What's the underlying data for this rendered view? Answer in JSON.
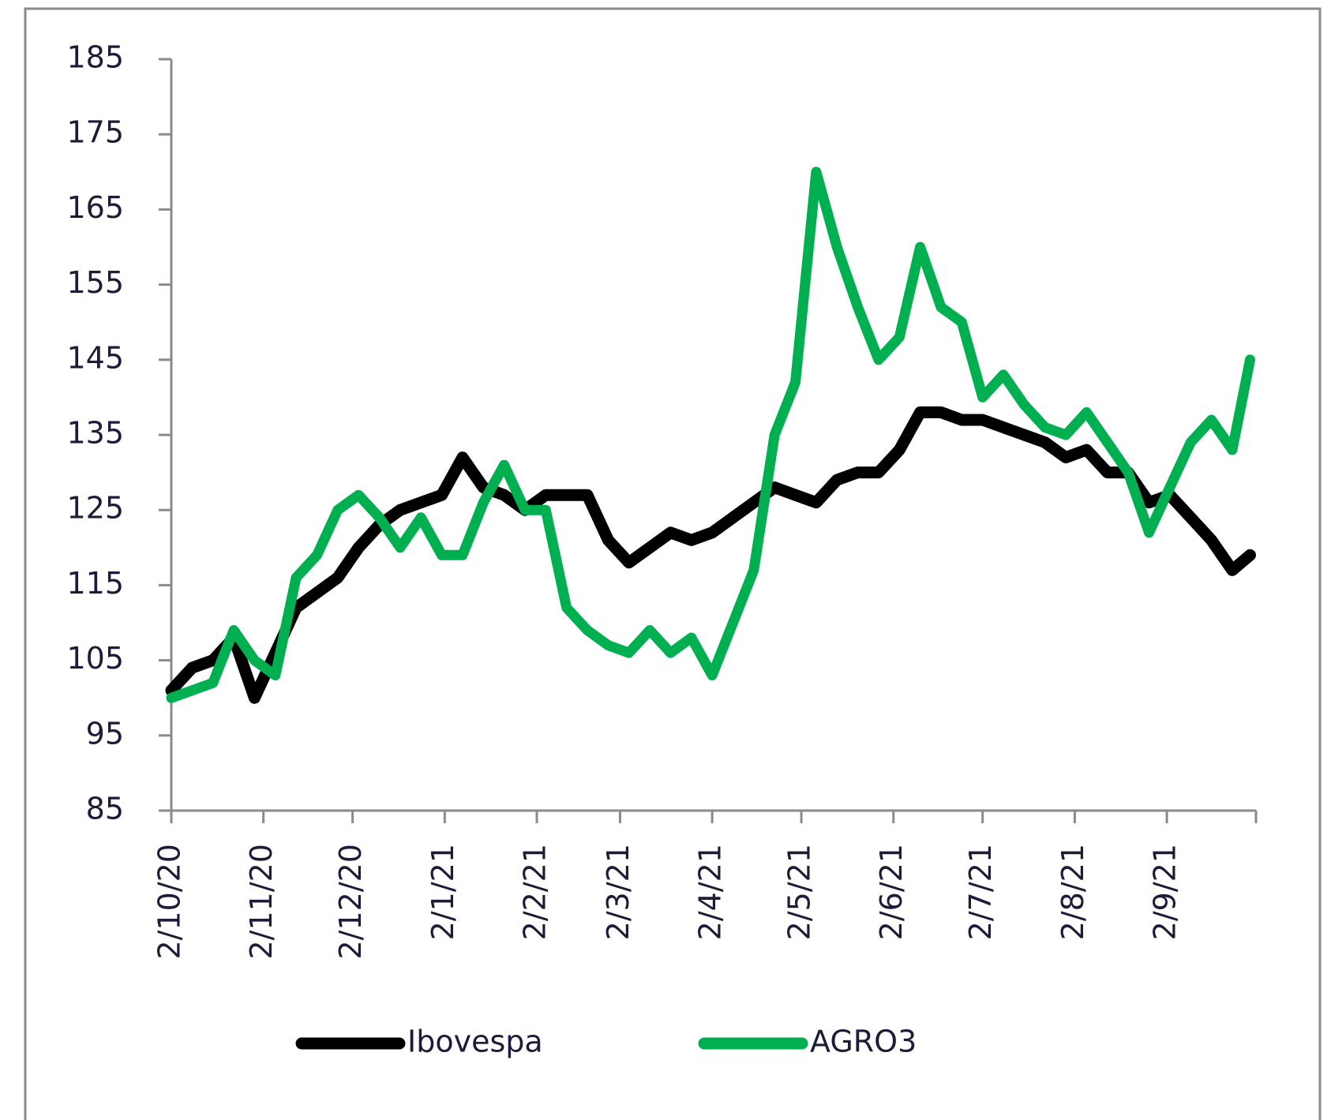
{
  "chart_data": {
    "type": "line",
    "x": [
      "2/10/20",
      "9/10/20",
      "16/10/20",
      "23/10/20",
      "30/10/20",
      "6/11/20",
      "13/11/20",
      "20/11/20",
      "27/11/20",
      "4/12/20",
      "11/12/20",
      "18/12/20",
      "25/12/20",
      "1/1/21",
      "8/1/21",
      "15/1/21",
      "22/1/21",
      "29/1/21",
      "5/2/21",
      "12/2/21",
      "19/2/21",
      "26/2/21",
      "5/3/21",
      "12/3/21",
      "19/3/21",
      "26/3/21",
      "2/4/21",
      "9/4/21",
      "16/4/21",
      "23/4/21",
      "30/4/21",
      "7/5/21",
      "14/5/21",
      "21/5/21",
      "28/5/21",
      "4/6/21",
      "11/6/21",
      "18/6/21",
      "25/6/21",
      "2/7/21",
      "9/7/21",
      "16/7/21",
      "23/7/21",
      "30/7/21",
      "6/8/21",
      "13/8/21",
      "20/8/21",
      "27/8/21",
      "3/9/21",
      "10/9/21",
      "17/9/21",
      "24/9/21",
      "30/9/21"
    ],
    "series": [
      {
        "name": "Ibovespa",
        "color": "#000000",
        "values": [
          101,
          104,
          105,
          108,
          100,
          106,
          112,
          114,
          116,
          120,
          123,
          125,
          126,
          127,
          132,
          128,
          127,
          125,
          127,
          127,
          127,
          121,
          118,
          120,
          122,
          121,
          122,
          124,
          126,
          128,
          127,
          126,
          129,
          130,
          130,
          133,
          138,
          138,
          137,
          137,
          136,
          135,
          134,
          132,
          133,
          130,
          130,
          126,
          127,
          124,
          121,
          117,
          119
        ]
      },
      {
        "name": "AGRO3",
        "color": "#00b050",
        "values": [
          100,
          101,
          102,
          109,
          105,
          103,
          116,
          119,
          125,
          127,
          124,
          120,
          124,
          119,
          119,
          126,
          131,
          125,
          125,
          112,
          109,
          107,
          106,
          109,
          106,
          108,
          103,
          110,
          117,
          135,
          142,
          170,
          160,
          152,
          145,
          148,
          160,
          152,
          150,
          140,
          143,
          139,
          136,
          135,
          138,
          134,
          130,
          122,
          128,
          134,
          137,
          133,
          145
        ]
      }
    ],
    "xlim": [
      "2/10/20",
      "2/10/21"
    ],
    "xticks": [
      "2/10/20",
      "2/11/20",
      "2/12/20",
      "2/1/21",
      "2/2/21",
      "2/3/21",
      "2/4/21",
      "2/5/21",
      "2/6/21",
      "2/7/21",
      "2/8/21",
      "2/9/21"
    ],
    "ylim": [
      85,
      185
    ],
    "yticks": [
      85,
      95,
      105,
      115,
      125,
      135,
      145,
      155,
      165,
      175,
      185
    ],
    "grid": false
  }
}
